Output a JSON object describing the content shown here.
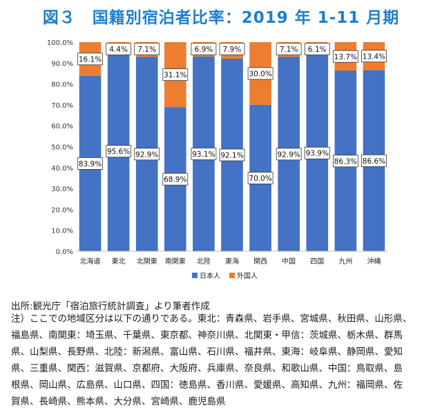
{
  "title": "図３　国籍別宿泊者比率：2019 年 1-11 月期",
  "source": "出所:観光庁「宿泊旅行統計調査」より筆者作成",
  "notes": [
    "注）ここでの地域区分は以下の通りである。東北：青森県、岩手県、宮城県、秋田県、山形県、",
    "福島県、南関東：埼玉県、千葉県、東京都、神奈川県、北関東・甲信：茨城県、栃木県、群馬",
    "県、山梨県、長野県、北陸：新潟県、富山県、石川県、福井県、東海：岐阜県、静岡県、愛知",
    "県、三重県、関西：滋賀県、京都府、大阪府、兵庫県、奈良県、和歌山県、中国：鳥取県、島",
    "根県、岡山県、広島県、山口県、四国：徳島県、香川県、愛媛県、高知県、九州：福岡県、佐",
    "賀県、長崎県、熊本県、大分県、宮崎県、鹿児島県"
  ],
  "chart_data": {
    "type": "bar",
    "stacked": true,
    "categories": [
      "北海道",
      "東北",
      "北関東",
      "南関東",
      "北陸",
      "東海",
      "関西",
      "中国",
      "四国",
      "九州",
      "沖縄"
    ],
    "series": [
      {
        "name": "日本人",
        "color": "#4472c4",
        "values": [
          83.9,
          95.6,
          92.9,
          68.9,
          93.1,
          92.1,
          70.0,
          92.9,
          93.9,
          86.3,
          86.6
        ]
      },
      {
        "name": "外国人",
        "color": "#ed7d31",
        "values": [
          16.1,
          4.4,
          7.1,
          31.1,
          6.9,
          7.9,
          30.0,
          7.1,
          6.1,
          13.7,
          13.4
        ]
      }
    ],
    "ylim": [
      0,
      100
    ],
    "yticks": [
      "0.0%",
      "10.0%",
      "20.0%",
      "30.0%",
      "40.0%",
      "50.0%",
      "60.0%",
      "70.0%",
      "80.0%",
      "90.0%",
      "100.0%"
    ],
    "grid": false,
    "legend_position": "bottom"
  }
}
